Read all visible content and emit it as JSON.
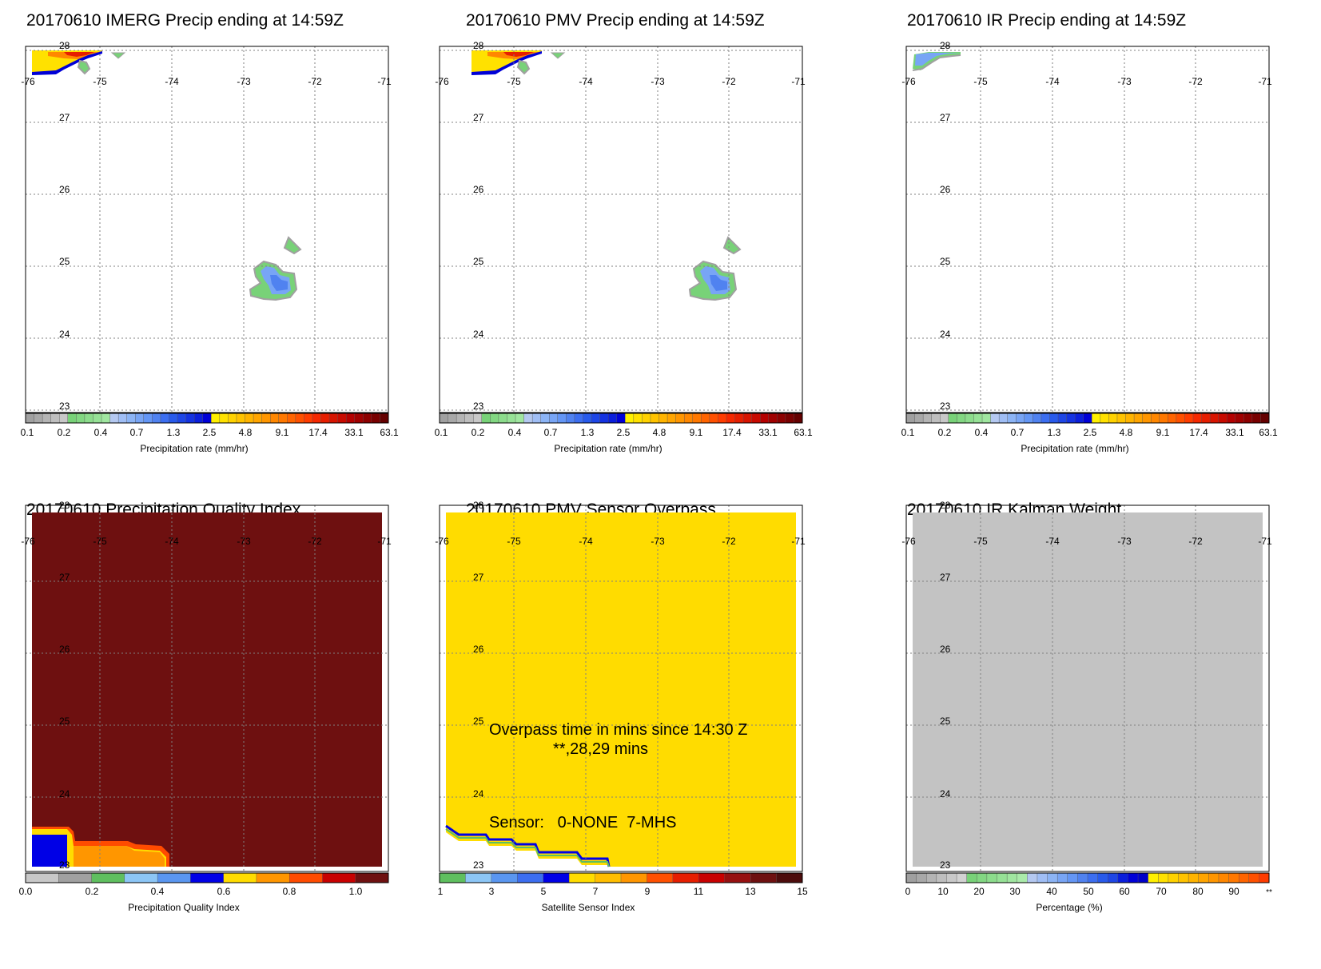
{
  "colors": {
    "precip_bins": [
      "#a0a0a0",
      "#a8a8a8",
      "#b4b4b4",
      "#bebebe",
      "#c8c8c8",
      "#78d278",
      "#82d782",
      "#8cdc8c",
      "#96e196",
      "#a0e6a0",
      "#b4c8f0",
      "#a0bef5",
      "#8cb4f5",
      "#78a5f5",
      "#6496f5",
      "#5082f0",
      "#3c6ef0",
      "#285aeb",
      "#1e46e6",
      "#1432e1",
      "#0a1edc",
      "#0000d7",
      "#fff000",
      "#ffe100",
      "#ffd200",
      "#ffc300",
      "#ffb400",
      "#ffa500",
      "#ff9600",
      "#ff8700",
      "#ff7800",
      "#ff6400",
      "#ff5000",
      "#ff3c00",
      "#f52800",
      "#e61e00",
      "#d71400",
      "#c80a00",
      "#b40000",
      "#a00000",
      "#8c0000",
      "#780000",
      "#640000"
    ],
    "quality_bins": [
      "#c8c8c8",
      "#a0a0a0",
      "#5fbf5f",
      "#8cc6f6",
      "#5a96f0",
      "#0000e6",
      "#ffdc00",
      "#ff9600",
      "#ff4b00",
      "#c80000",
      "#6e1010"
    ],
    "sensor_bins": [
      "#5fbf5f",
      "#8cc6f6",
      "#5a96f0",
      "#3c6ef0",
      "#0000e6",
      "#ffdc00",
      "#ffbe00",
      "#ff9600",
      "#ff5000",
      "#e61e00",
      "#c80000",
      "#961010",
      "#6e1010",
      "#4c0c0c"
    ],
    "kalman_bins": [
      "#a0a0a0",
      "#a8a8a8",
      "#b4b4b4",
      "#bebebe",
      "#c8c8c8",
      "#d2d2d2",
      "#78d278",
      "#82d782",
      "#8cdc8c",
      "#96e196",
      "#a0e6a0",
      "#aaeaaa",
      "#b4c8f0",
      "#a0bef5",
      "#8cb4f5",
      "#78a5f5",
      "#6496f5",
      "#5082f0",
      "#3c6ef0",
      "#285aeb",
      "#1e46e6",
      "#0a1edc",
      "#0000d7",
      "#0000c8",
      "#fff000",
      "#ffe100",
      "#ffd200",
      "#ffc300",
      "#ffb400",
      "#ffa500",
      "#ff9600",
      "#ff8700",
      "#ff7800",
      "#ff6400",
      "#ff5000",
      "#ff3c00"
    ],
    "field_pqi": "#6e1010",
    "field_overpass": "#ffdc00",
    "field_kalman": "#c3c3c3"
  },
  "panels": [
    {
      "id": "imerg",
      "title": "20170610 IMERG Precip ending at 14:59Z",
      "chart_data": {
        "type": "heatmap",
        "x_ticks": [
          "-76",
          "-75",
          "-74",
          "-73",
          "-72",
          "-71"
        ],
        "y_ticks": [
          "28",
          "27",
          "26",
          "25",
          "24",
          "23"
        ],
        "xlim": [
          -76,
          -71
        ],
        "ylim": [
          23,
          28
        ],
        "grid": true,
        "colorbar": {
          "labels": [
            "0.1",
            "0.2",
            "0.4",
            "0.7",
            "1.3",
            "2.5",
            "4.8",
            "9.1",
            "17.4",
            "33.1",
            "63.1"
          ],
          "title": "Precipitation rate (mm/hr)"
        }
      }
    },
    {
      "id": "pmv",
      "title": "20170610 PMV Precip ending at 14:59Z",
      "chart_data": {
        "type": "heatmap",
        "x_ticks": [
          "-76",
          "-75",
          "-74",
          "-73",
          "-72",
          "-71"
        ],
        "y_ticks": [
          "28",
          "27",
          "26",
          "25",
          "24",
          "23"
        ],
        "xlim": [
          -76,
          -71
        ],
        "ylim": [
          23,
          28
        ],
        "grid": true,
        "colorbar": {
          "labels": [
            "0.1",
            "0.2",
            "0.4",
            "0.7",
            "1.3",
            "2.5",
            "4.8",
            "9.1",
            "17.4",
            "33.1",
            "63.1"
          ],
          "title": "Precipitation rate (mm/hr)"
        }
      }
    },
    {
      "id": "ir",
      "title": "20170610 IR Precip ending at 14:59Z",
      "chart_data": {
        "type": "heatmap",
        "x_ticks": [
          "-76",
          "-75",
          "-74",
          "-73",
          "-72",
          "-71"
        ],
        "y_ticks": [
          "28",
          "27",
          "26",
          "25",
          "24",
          "23"
        ],
        "xlim": [
          -76,
          -71
        ],
        "ylim": [
          23,
          28
        ],
        "grid": true,
        "colorbar": {
          "labels": [
            "0.1",
            "0.2",
            "0.4",
            "0.7",
            "1.3",
            "2.5",
            "4.8",
            "9.1",
            "17.4",
            "33.1",
            "63.1"
          ],
          "title": "Precipitation rate (mm/hr)"
        }
      }
    },
    {
      "id": "pqi",
      "title": "20170610 Precipitation Quality Index",
      "chart_data": {
        "type": "heatmap",
        "x_ticks": [
          "-76",
          "-75",
          "-74",
          "-73",
          "-72",
          "-71"
        ],
        "y_ticks": [
          "28",
          "27",
          "26",
          "25",
          "24",
          "23"
        ],
        "xlim": [
          -76,
          -71
        ],
        "ylim": [
          23,
          28
        ],
        "grid": true,
        "colorbar": {
          "labels": [
            "0.0",
            "0.2",
            "0.4",
            "0.6",
            "0.8",
            "1.0"
          ],
          "title": "Precipitation Quality Index"
        }
      }
    },
    {
      "id": "overpass",
      "title": "20170610 PMV Sensor Overpass",
      "annotations": [
        "Overpass time in mins since 14:30 Z",
        "**,28,29 mins",
        "Sensor:   0-NONE  7-MHS"
      ],
      "chart_data": {
        "type": "heatmap",
        "x_ticks": [
          "-76",
          "-75",
          "-74",
          "-73",
          "-72",
          "-71"
        ],
        "y_ticks": [
          "28",
          "27",
          "26",
          "25",
          "24",
          "23"
        ],
        "xlim": [
          -76,
          -71
        ],
        "ylim": [
          23,
          28
        ],
        "grid": true,
        "colorbar": {
          "labels": [
            "1",
            "3",
            "5",
            "7",
            "9",
            "11",
            "13",
            "15"
          ],
          "title": "Satellite Sensor Index"
        }
      }
    },
    {
      "id": "kalman",
      "title": "20170610 IR Kalman Weight",
      "chart_data": {
        "type": "heatmap",
        "x_ticks": [
          "-76",
          "-75",
          "-74",
          "-73",
          "-72",
          "-71"
        ],
        "y_ticks": [
          "28",
          "27",
          "26",
          "25",
          "24",
          "23"
        ],
        "xlim": [
          -76,
          -71
        ],
        "ylim": [
          23,
          28
        ],
        "grid": true,
        "colorbar": {
          "labels": [
            "0",
            "10",
            "20",
            "30",
            "40",
            "50",
            "60",
            "70",
            "80",
            "90",
            "**"
          ],
          "title": "Percentage (%)"
        }
      }
    }
  ]
}
